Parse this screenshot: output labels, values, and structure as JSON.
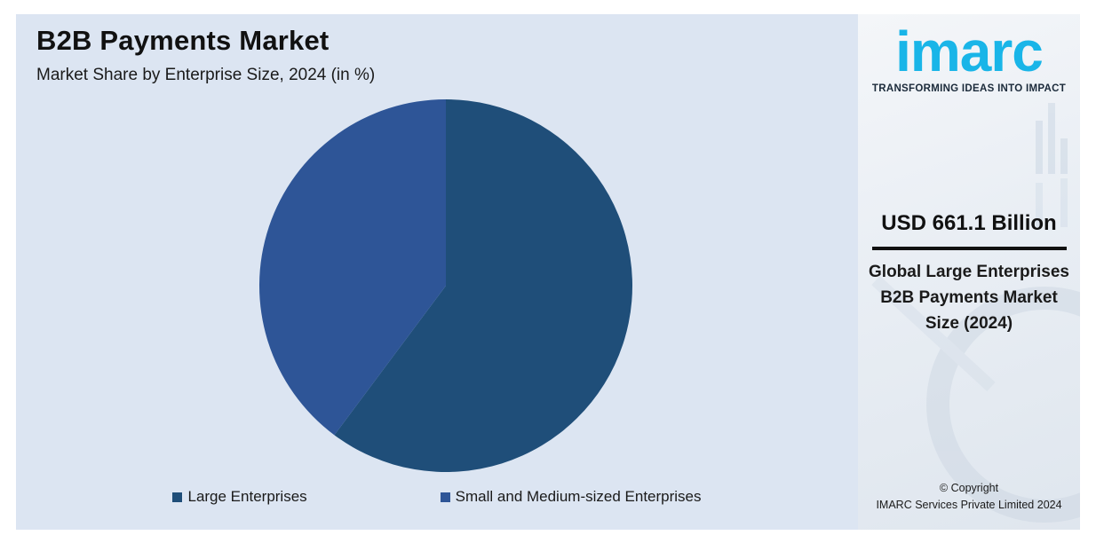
{
  "header": {
    "title": "B2B Payments Market",
    "subtitle": "Market Share by Enterprise Size, 2024 (in %)"
  },
  "chart_data": {
    "type": "pie",
    "title": "B2B Payments Market",
    "subtitle": "Market Share by Enterprise Size, 2024 (in %)",
    "categories": [
      "Large Enterprises",
      "Small and Medium-sized Enterprises"
    ],
    "values": [
      60.2,
      39.8
    ],
    "colors": [
      "#1f4e79",
      "#2e5597"
    ],
    "legend_position": "bottom",
    "start_angle_deg": 0,
    "direction": "clockwise"
  },
  "legend": {
    "items": [
      {
        "label": "Large Enterprises",
        "color": "#1f4e79"
      },
      {
        "label": "Small and Medium-sized Enterprises",
        "color": "#2e5597"
      }
    ]
  },
  "sidebar": {
    "logo_text": "imarc",
    "tagline": "TRANSFORMING IDEAS INTO IMPACT",
    "kpi_value": "USD 661.1 Billion",
    "kpi_label": "Global Large Enterprises B2B Payments Market Size (2024)",
    "copyright_line1": "© Copyright",
    "copyright_line2": "IMARC Services Private Limited 2024",
    "brand_color": "#19b5e8"
  }
}
